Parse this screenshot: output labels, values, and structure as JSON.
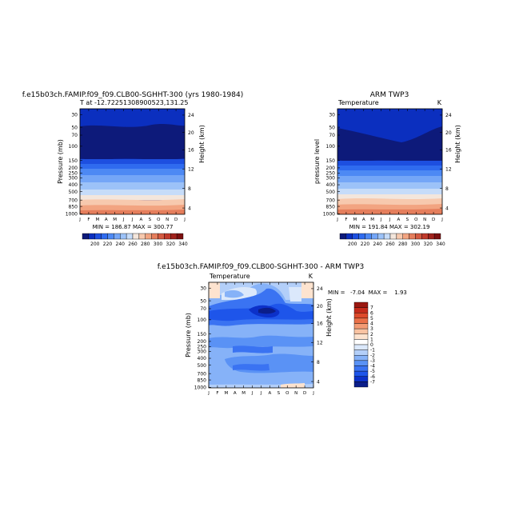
{
  "colors": {
    "temp_scale": [
      "#0d1a7a",
      "#0b2fbf",
      "#1d4fe0",
      "#2f6bef",
      "#4d89f4",
      "#74a6f7",
      "#9cc2f8",
      "#c6dcf9",
      "#f3e6dc",
      "#f7c9ae",
      "#f2a481",
      "#e57e5c",
      "#d45a41",
      "#c03a2b",
      "#a0221c",
      "#7c1010"
    ],
    "diff_scale": [
      "#0b1e8a",
      "#0c31c9",
      "#1e55ea",
      "#3a73f2",
      "#5a92f5",
      "#86b2f8",
      "#b3cff9",
      "#dbe8fb",
      "#ffffff",
      "#fde3cf",
      "#f9c3a2",
      "#f39b74",
      "#ea7048",
      "#de4a2b",
      "#c52b1b",
      "#9b1710"
    ]
  },
  "chart_data": [
    {
      "type": "heatmap",
      "title": "f.e15b03ch.FAMIP.f09_f09.CLB00-SGHHT-300 (yrs 1980-1984)",
      "subtitle_left": "T at -12.72251308900523,131.25",
      "subtitle_right": "",
      "ylabel": "Pressure (mb)",
      "ylabel_right": "Height (km)",
      "x_ticks": [
        "J",
        "F",
        "M",
        "A",
        "M",
        "J",
        "J",
        "A",
        "S",
        "O",
        "N",
        "D",
        "J"
      ],
      "y_ticks": [
        "30",
        "50",
        "70",
        "100",
        "150",
        "200",
        "250",
        "300",
        "400",
        "500",
        "700",
        "850",
        "1000"
      ],
      "y_ticks_right": [
        "24",
        "20",
        "16",
        "12",
        "8",
        "4"
      ],
      "stats": "MIN = 186.87  MAX = 300.77",
      "colorbar_labels": [
        "200",
        "220",
        "240",
        "260",
        "280",
        "300",
        "320",
        "340"
      ],
      "min": 186.87,
      "max": 300.77
    },
    {
      "type": "heatmap",
      "title": "ARM TWP3",
      "subtitle_left": "Temperature",
      "subtitle_right": "K",
      "ylabel": "pressure level",
      "ylabel_right": "Height (km)",
      "x_ticks": [
        "J",
        "F",
        "M",
        "A",
        "M",
        "J",
        "J",
        "A",
        "S",
        "O",
        "N",
        "D",
        "J"
      ],
      "y_ticks": [
        "30",
        "50",
        "70",
        "100",
        "150",
        "200",
        "250",
        "300",
        "400",
        "500",
        "700",
        "850",
        "1000"
      ],
      "y_ticks_right": [
        "24",
        "20",
        "16",
        "12",
        "8",
        "4"
      ],
      "stats": "MIN = 191.84  MAX = 302.19",
      "colorbar_labels": [
        "200",
        "220",
        "240",
        "260",
        "280",
        "300",
        "320",
        "340"
      ],
      "min": 191.84,
      "max": 302.19
    },
    {
      "type": "heatmap",
      "title": "f.e15b03ch.FAMIP.f09_f09.CLB00-SGHHT-300 - ARM TWP3",
      "subtitle_left": "Temperature",
      "subtitle_right": "K",
      "ylabel": "Pressure (mb)",
      "ylabel_right": "Height (km)",
      "x_ticks": [
        "J",
        "F",
        "M",
        "A",
        "M",
        "J",
        "J",
        "A",
        "S",
        "O",
        "N",
        "D",
        "J"
      ],
      "y_ticks": [
        "30",
        "50",
        "70",
        "100",
        "150",
        "200",
        "250",
        "300",
        "400",
        "500",
        "700",
        "850",
        "1000"
      ],
      "y_ticks_right": [
        "24",
        "20",
        "16",
        "12",
        "8",
        "4"
      ],
      "stats": "MIN =   -7.04  MAX =    1.93",
      "colorbar_labels": [
        "7",
        "6",
        "5",
        "4",
        "3",
        "2",
        "1",
        "0",
        "-1",
        "-2",
        "-3",
        "-4",
        "-5",
        "-6",
        "-7"
      ],
      "min": -7.04,
      "max": 1.93
    }
  ]
}
